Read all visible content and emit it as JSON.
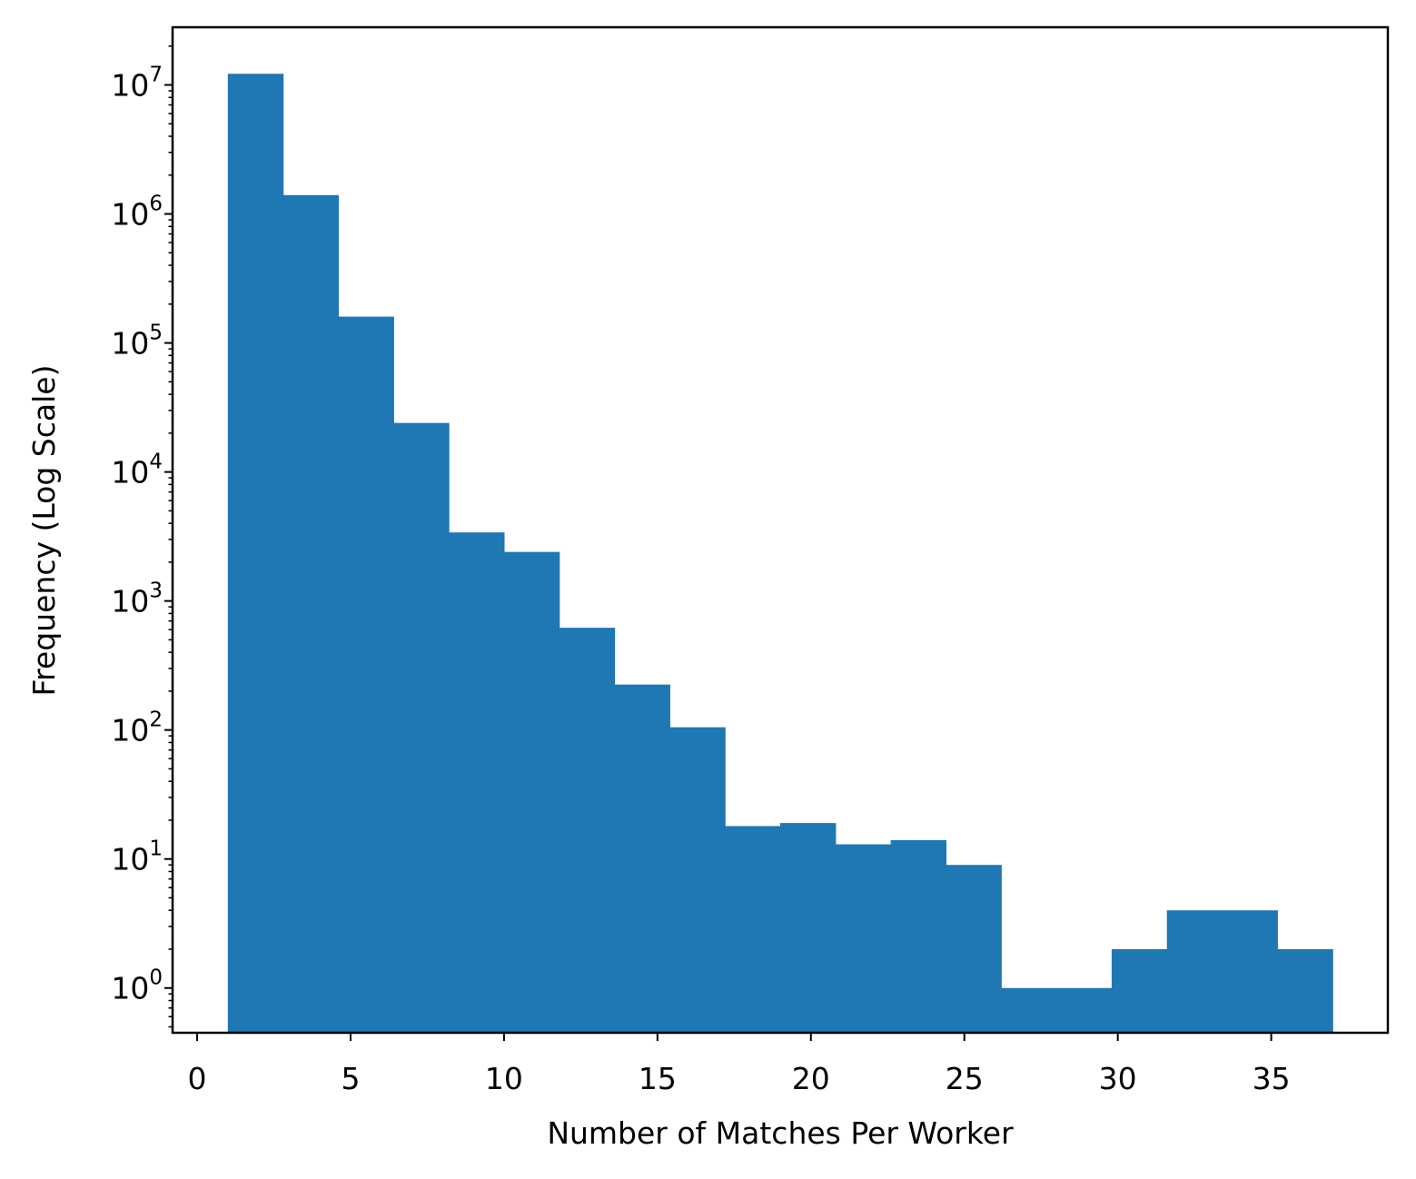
{
  "chart_data": {
    "type": "bar",
    "xlabel": "Number of Matches Per Worker",
    "ylabel": "Frequency (Log Scale)",
    "yscale": "log",
    "xlim": [
      -0.8,
      38.8
    ],
    "ylim": [
      0.45,
      28000000
    ],
    "grid": false,
    "color": "#1f77b4",
    "xticks": [
      0,
      5,
      10,
      15,
      20,
      25,
      30,
      35
    ],
    "xtick_labels": [
      "0",
      "5",
      "10",
      "15",
      "20",
      "25",
      "30",
      "35"
    ],
    "yticks": [
      1,
      10,
      100,
      1000,
      10000,
      100000,
      1000000,
      10000000
    ],
    "ytick_labels": [
      {
        "base": "10",
        "exp": "0"
      },
      {
        "base": "10",
        "exp": "1"
      },
      {
        "base": "10",
        "exp": "2"
      },
      {
        "base": "10",
        "exp": "3"
      },
      {
        "base": "10",
        "exp": "4"
      },
      {
        "base": "10",
        "exp": "5"
      },
      {
        "base": "10",
        "exp": "6"
      },
      {
        "base": "10",
        "exp": "7"
      }
    ],
    "bin_edges": [
      1,
      2.8,
      4.6,
      6.4,
      8.2,
      10,
      11.8,
      13.6,
      15.4,
      17.2,
      19,
      20.8,
      22.6,
      24.4,
      26.2,
      28,
      29.8,
      31.6,
      33.4,
      35.2,
      37
    ],
    "values": [
      12200000,
      1400000,
      160000,
      24000,
      3400,
      2400,
      620,
      225,
      105,
      18,
      19,
      13,
      14,
      9,
      1,
      1,
      2,
      4,
      4,
      2
    ]
  }
}
